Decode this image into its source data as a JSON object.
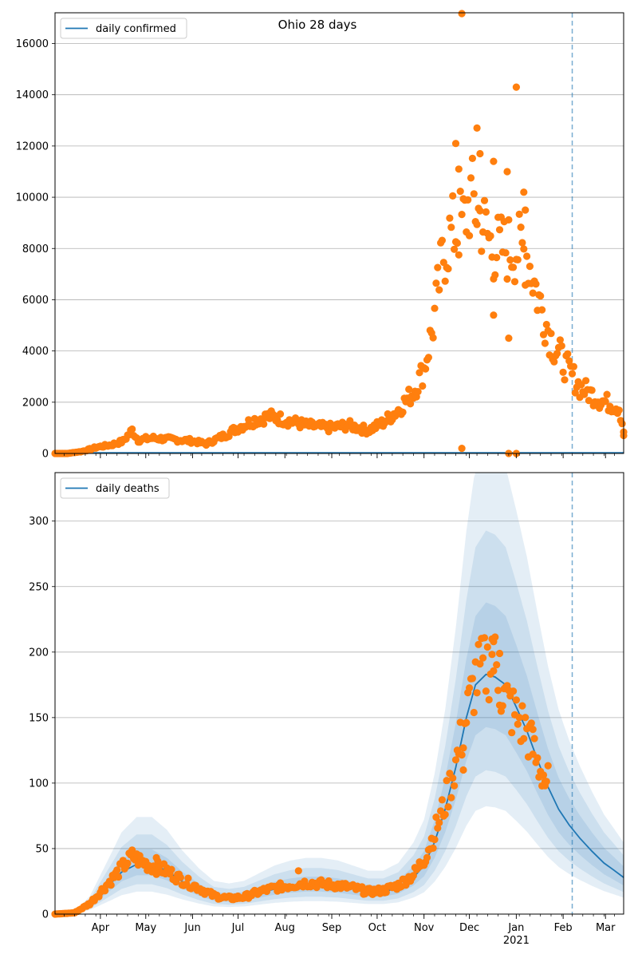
{
  "figure_title": "Ohio 28 days",
  "colors": {
    "line": "#1f77b4",
    "points": "#ff7f0e",
    "band": "#1f77b4",
    "grid": "#b0b0b0",
    "vline": "#1f77b4"
  },
  "x_axis": {
    "month_labels": [
      "Apr",
      "May",
      "Jun",
      "Jul",
      "Aug",
      "Sep",
      "Oct",
      "Nov",
      "Dec",
      "Jan",
      "Feb",
      "Mar"
    ],
    "year_label": "2021"
  },
  "chart_data": [
    {
      "type": "scatter",
      "title": "Ohio 28 days",
      "legend": [
        "daily confirmed"
      ],
      "legend_position": "top-left",
      "grid": true,
      "ylim": [
        0,
        17200
      ],
      "yticks": [
        0,
        2000,
        4000,
        6000,
        8000,
        10000,
        12000,
        14000,
        16000
      ],
      "x_range": [
        "2020-03-02",
        "2021-03-13"
      ],
      "forecast_start": "2021-02-07",
      "series": [
        {
          "name": "daily confirmed",
          "kind": "line",
          "values": []
        }
      ],
      "points": {
        "anchors": [
          [
            "2020-03-02",
            0
          ],
          [
            "2020-03-10",
            0
          ],
          [
            "2020-03-20",
            80
          ],
          [
            "2020-03-30",
            250
          ],
          [
            "2020-04-08",
            330
          ],
          [
            "2020-04-16",
            480
          ],
          [
            "2020-04-22",
            900
          ],
          [
            "2020-04-26",
            520
          ],
          [
            "2020-05-05",
            600
          ],
          [
            "2020-05-18",
            550
          ],
          [
            "2020-05-30",
            500
          ],
          [
            "2020-06-10",
            380
          ],
          [
            "2020-06-22",
            700
          ],
          [
            "2020-07-01",
            1000
          ],
          [
            "2020-07-12",
            1300
          ],
          [
            "2020-07-22",
            1450
          ],
          [
            "2020-08-02",
            1300
          ],
          [
            "2020-08-15",
            1100
          ],
          [
            "2020-08-30",
            1000
          ],
          [
            "2020-09-12",
            1100
          ],
          [
            "2020-09-25",
            900
          ],
          [
            "2020-10-05",
            1200
          ],
          [
            "2020-10-15",
            1700
          ],
          [
            "2020-10-25",
            2400
          ],
          [
            "2020-11-01",
            3300
          ],
          [
            "2020-11-07",
            5000
          ],
          [
            "2020-11-13",
            7500
          ],
          [
            "2020-11-18",
            8500
          ],
          [
            "2020-11-27",
            9000
          ],
          [
            "2020-12-02",
            10000
          ],
          [
            "2020-12-10",
            9000
          ],
          [
            "2020-12-16",
            8000
          ],
          [
            "2020-12-24",
            8000
          ],
          [
            "2021-01-02",
            8000
          ],
          [
            "2021-01-08",
            7800
          ],
          [
            "2021-01-16",
            6000
          ],
          [
            "2021-01-25",
            4300
          ],
          [
            "2021-02-04",
            3300
          ],
          [
            "2021-02-12",
            2600
          ],
          [
            "2021-02-25",
            2100
          ],
          [
            "2021-03-10",
            1800
          ],
          [
            "2021-03-13",
            900
          ]
        ],
        "outliers": [
          [
            "2020-11-26",
            17200
          ],
          [
            "2020-11-26",
            200
          ],
          [
            "2020-12-06",
            12700
          ],
          [
            "2020-11-22",
            12100
          ],
          [
            "2020-11-24",
            11100
          ],
          [
            "2020-12-08",
            11700
          ],
          [
            "2020-12-17",
            11400
          ],
          [
            "2020-12-26",
            11000
          ],
          [
            "2021-01-01",
            14300
          ],
          [
            "2021-01-06",
            10200
          ],
          [
            "2021-01-07",
            9500
          ],
          [
            "2020-12-27",
            4500
          ],
          [
            "2020-12-17",
            5400
          ],
          [
            "2020-12-27",
            0
          ],
          [
            "2021-01-01",
            0
          ],
          [
            "2021-03-13",
            700
          ]
        ]
      }
    },
    {
      "type": "scatter",
      "title": "",
      "legend": [
        "daily deaths"
      ],
      "legend_position": "top-left",
      "grid": true,
      "ylim": [
        0,
        337
      ],
      "yticks": [
        0,
        50,
        100,
        150,
        200,
        250,
        300
      ],
      "x_range": [
        "2020-03-02",
        "2021-03-13"
      ],
      "forecast_start": "2021-02-07",
      "series": [
        {
          "name": "daily deaths",
          "kind": "line",
          "values": [
            [
              "2020-03-02",
              0
            ],
            [
              "2020-03-15",
              1
            ],
            [
              "2020-03-25",
              7
            ],
            [
              "2020-04-05",
              20
            ],
            [
              "2020-04-15",
              32
            ],
            [
              "2020-04-25",
              38
            ],
            [
              "2020-05-05",
              38
            ],
            [
              "2020-05-15",
              33
            ],
            [
              "2020-05-25",
              25
            ],
            [
              "2020-06-05",
              18
            ],
            [
              "2020-06-15",
              13
            ],
            [
              "2020-06-25",
              12
            ],
            [
              "2020-07-05",
              13
            ],
            [
              "2020-07-15",
              16
            ],
            [
              "2020-07-25",
              19
            ],
            [
              "2020-08-05",
              21
            ],
            [
              "2020-08-15",
              22
            ],
            [
              "2020-08-25",
              22
            ],
            [
              "2020-09-05",
              21
            ],
            [
              "2020-09-15",
              19
            ],
            [
              "2020-09-25",
              17
            ],
            [
              "2020-10-05",
              17
            ],
            [
              "2020-10-15",
              20
            ],
            [
              "2020-10-25",
              28
            ],
            [
              "2020-11-01",
              37
            ],
            [
              "2020-11-08",
              55
            ],
            [
              "2020-11-15",
              80
            ],
            [
              "2020-11-22",
              112
            ],
            [
              "2020-11-29",
              150
            ],
            [
              "2020-12-05",
              175
            ],
            [
              "2020-12-12",
              183
            ],
            [
              "2020-12-18",
              181
            ],
            [
              "2020-12-25",
              175
            ],
            [
              "2021-01-01",
              158
            ],
            [
              "2021-01-08",
              140
            ],
            [
              "2021-01-15",
              118
            ],
            [
              "2021-01-22",
              97
            ],
            [
              "2021-01-29",
              80
            ],
            [
              "2021-02-05",
              68
            ],
            [
              "2021-02-12",
              58
            ],
            [
              "2021-02-20",
              48
            ],
            [
              "2021-02-28",
              39
            ],
            [
              "2021-03-06",
              34
            ],
            [
              "2021-03-13",
              28
            ]
          ]
        }
      ],
      "bands": [
        {
          "level": "outer",
          "upper_ratio": 1.95,
          "lower_ratio": 0.45
        },
        {
          "level": "middle",
          "upper_ratio": 1.6,
          "lower_ratio": 0.6
        },
        {
          "level": "inner",
          "upper_ratio": 1.3,
          "lower_ratio": 0.78
        }
      ],
      "points": {
        "anchors": [
          [
            "2020-03-02",
            0
          ],
          [
            "2020-03-15",
            1
          ],
          [
            "2020-03-25",
            8
          ],
          [
            "2020-04-05",
            22
          ],
          [
            "2020-04-15",
            35
          ],
          [
            "2020-04-22",
            44
          ],
          [
            "2020-05-02",
            38
          ],
          [
            "2020-05-15",
            33
          ],
          [
            "2020-05-25",
            26
          ],
          [
            "2020-06-05",
            20
          ],
          [
            "2020-06-15",
            14
          ],
          [
            "2020-06-25",
            12
          ],
          [
            "2020-07-05",
            13
          ],
          [
            "2020-07-15",
            17
          ],
          [
            "2020-07-25",
            20
          ],
          [
            "2020-08-05",
            22
          ],
          [
            "2020-08-15",
            24
          ],
          [
            "2020-08-25",
            23
          ],
          [
            "2020-09-05",
            22
          ],
          [
            "2020-09-15",
            20
          ],
          [
            "2020-09-25",
            17
          ],
          [
            "2020-10-05",
            18
          ],
          [
            "2020-10-15",
            22
          ],
          [
            "2020-10-25",
            30
          ],
          [
            "2020-11-01",
            42
          ],
          [
            "2020-11-08",
            62
          ],
          [
            "2020-11-15",
            85
          ],
          [
            "2020-11-22",
            115
          ],
          [
            "2020-11-29",
            150
          ],
          [
            "2020-12-05",
            180
          ],
          [
            "2020-12-12",
            188
          ],
          [
            "2020-12-17",
            195
          ],
          [
            "2020-12-24",
            165
          ],
          [
            "2021-01-01",
            150
          ],
          [
            "2021-01-08",
            140
          ],
          [
            "2021-01-15",
            115
          ],
          [
            "2021-01-22",
            100
          ]
        ],
        "outliers": [
          [
            "2020-12-16",
            210
          ],
          [
            "2020-12-17",
            208
          ],
          [
            "2020-12-21",
            199
          ],
          [
            "2020-11-27",
            110
          ],
          [
            "2021-01-12",
            141
          ],
          [
            "2021-01-20",
            98
          ],
          [
            "2020-05-08",
            43
          ],
          [
            "2020-08-10",
            33
          ]
        ]
      }
    }
  ]
}
